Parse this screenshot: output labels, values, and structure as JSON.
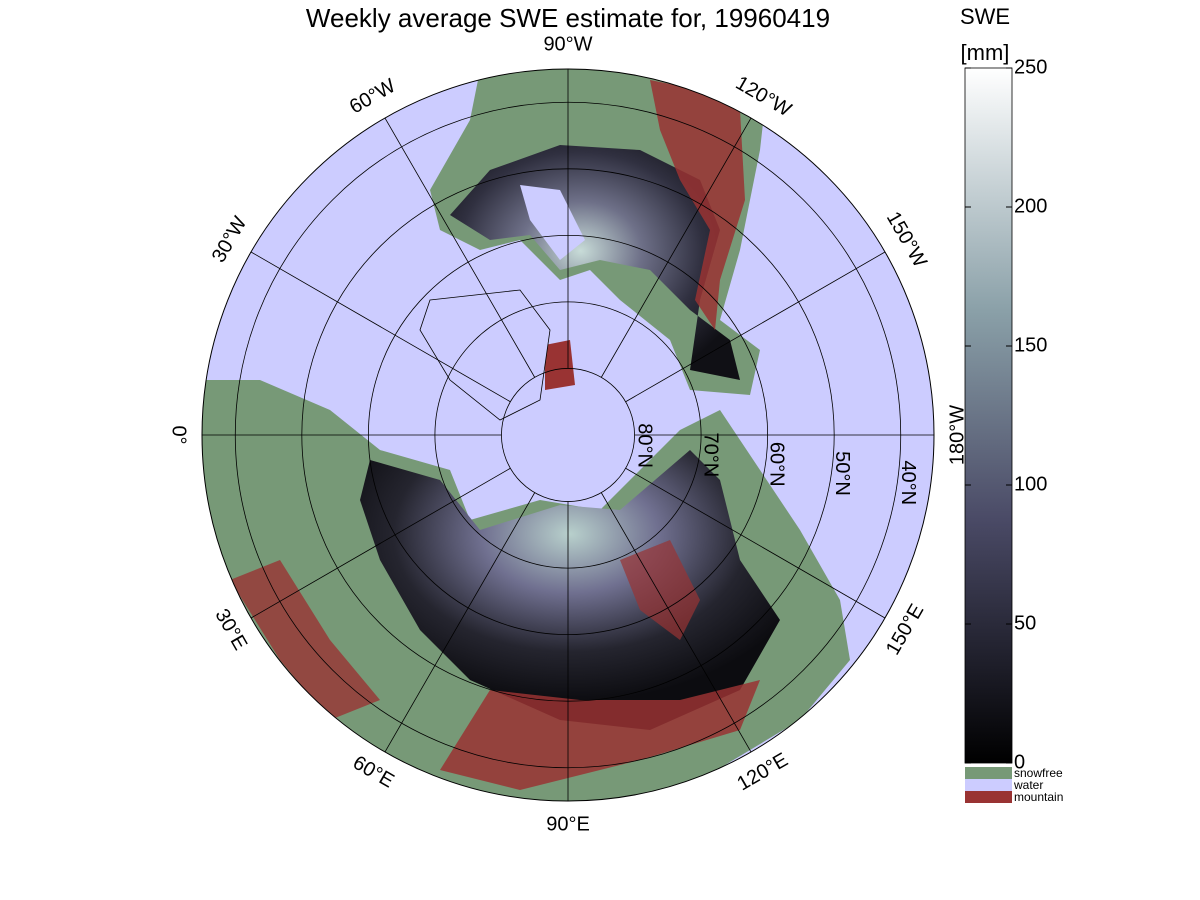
{
  "title": "Weekly average SWE estimate for, 19960419",
  "map": {
    "longitudes": [
      {
        "value": 0,
        "label": "0°"
      },
      {
        "value": -30,
        "label": "30°W"
      },
      {
        "value": -60,
        "label": "60°W"
      },
      {
        "value": -90,
        "label": "90°W"
      },
      {
        "value": -120,
        "label": "120°W"
      },
      {
        "value": -150,
        "label": "150°W"
      },
      {
        "value": 180,
        "label": "180°W"
      },
      {
        "value": 150,
        "label": "150°E"
      },
      {
        "value": 120,
        "label": "120°E"
      },
      {
        "value": 90,
        "label": "90°E"
      },
      {
        "value": 60,
        "label": "60°E"
      },
      {
        "value": 30,
        "label": "30°E"
      }
    ],
    "latitudes": [
      {
        "value": 80,
        "label": "80°N"
      },
      {
        "value": 70,
        "label": "70°N"
      },
      {
        "value": 60,
        "label": "60°N"
      },
      {
        "value": 50,
        "label": "50°N"
      },
      {
        "value": 40,
        "label": "40°N"
      }
    ]
  },
  "colorbar": {
    "label": "SWE",
    "unit": "[mm]",
    "lim": [
      0,
      250
    ],
    "ticks": [
      0,
      50,
      100,
      150,
      200,
      250
    ],
    "categories": [
      {
        "name": "snowfree",
        "color": "#779977"
      },
      {
        "name": "water",
        "color": "#ccccff"
      },
      {
        "name": "mountain",
        "color": "#993333"
      }
    ]
  }
}
